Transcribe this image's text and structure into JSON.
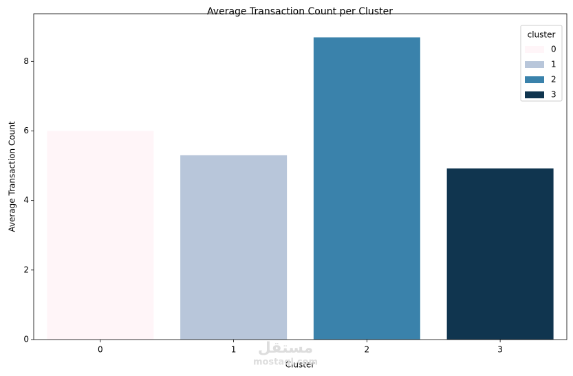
{
  "chart_data": {
    "type": "bar",
    "title": "Average Transaction Count per Cluster",
    "x_label": "Cluster",
    "y_label": "Average Transaction Count",
    "categories": [
      "0",
      "1",
      "2",
      "3"
    ],
    "values": [
      6.0,
      5.3,
      8.69,
      4.92
    ],
    "colors": [
      "#fff5f8",
      "#b8c6da",
      "#3a82ab",
      "#10354f"
    ],
    "ylim": [
      0,
      9.37
    ],
    "yticks": [
      0,
      2,
      4,
      6,
      8
    ],
    "legend": {
      "title": "cluster",
      "labels": [
        "0",
        "1",
        "2",
        "3"
      ],
      "position": "upper right"
    },
    "watermark": [
      "مستقل",
      "mostaql.com"
    ]
  }
}
